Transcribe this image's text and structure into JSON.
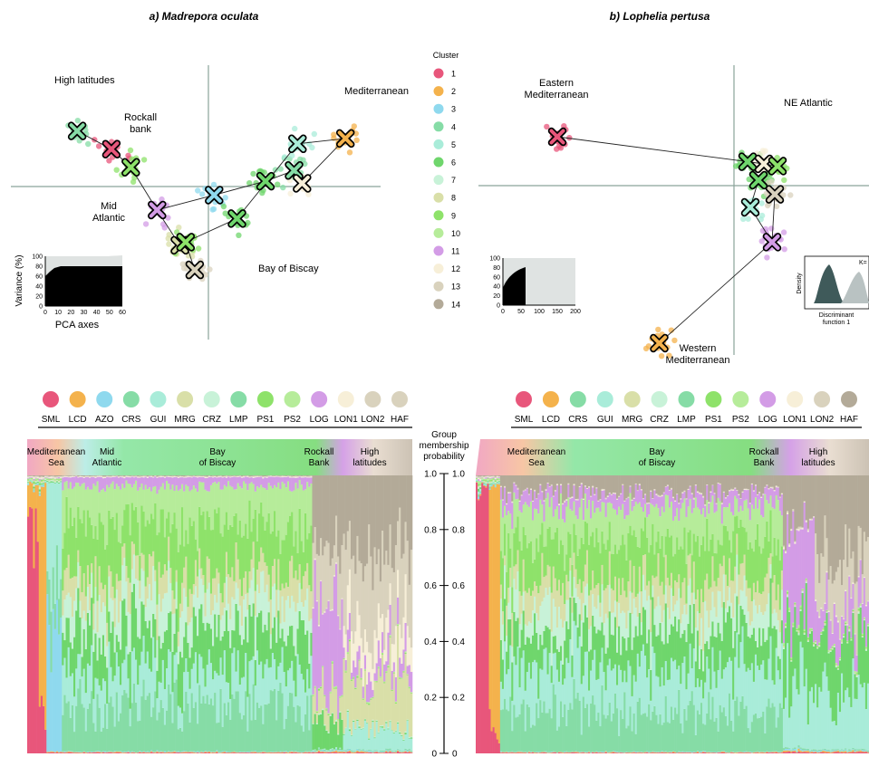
{
  "panel_titles": {
    "a": "a) Madrepora oculata",
    "b": "b) Lophelia pertusa"
  },
  "cluster_legend": {
    "title": "Cluster",
    "labels": [
      "1",
      "2",
      "3",
      "4",
      "5",
      "6",
      "7",
      "8",
      "9",
      "10",
      "11",
      "12",
      "13",
      "14"
    ],
    "colors": [
      "#e8567b",
      "#f4b24c",
      "#8fd9ee",
      "#86dca6",
      "#a9ecd9",
      "#6fd66c",
      "#c8f2d8",
      "#d9dfa8",
      "#8ee26a",
      "#b6ec9a",
      "#d39ce6",
      "#f7efd8",
      "#d9d2bd",
      "#b3aa98"
    ]
  },
  "region_labels_a": {
    "high_latitudes": "High latitudes",
    "rockall": "Rockall\nbank",
    "mediterranean": "Mediterranean",
    "mid_atlantic": "Mid\nAtlantic",
    "bay_of_biscay": "Bay of Biscay"
  },
  "region_labels_b": {
    "east_med": "Eastern\nMediterranean",
    "ne_atlantic": "NE Atlantic",
    "west_med": "Western\nMediterranean"
  },
  "variance_inset": {
    "ylabel": "Variance (%)",
    "xlabel_a": "PCA axes",
    "yticks": [
      "100",
      "80",
      "60",
      "40",
      "20",
      "0"
    ],
    "xticks_a": [
      "0",
      "10",
      "20",
      "30",
      "40",
      "50",
      "60"
    ],
    "xticks_b": [
      "0",
      "50",
      "100",
      "150",
      "200"
    ]
  },
  "density_inset": {
    "ylabel": "Density",
    "xlabel": "Discriminant\nfunction 1",
    "k_label": "K="
  },
  "populations": {
    "codes_a": [
      "SML",
      "LCD",
      "AZO",
      "CRS",
      "GUI",
      "MRG",
      "CRZ",
      "LMP",
      "PS1",
      "PS2",
      "LOG",
      "LON1",
      "LON2",
      "HAF"
    ],
    "colors_a": [
      "#e8567b",
      "#f4b24c",
      "#8fd9ee",
      "#86dca6",
      "#a9ecd9",
      "#d9dfa8",
      "#c8f2d8",
      "#86dca6",
      "#8ee26a",
      "#b6ec9a",
      "#d39ce6",
      "#f7efd8",
      "#d9d2bd",
      "#d9d2bd"
    ],
    "codes_b": [
      "SML",
      "LCD",
      "CRS",
      "GUI",
      "MRG",
      "CRZ",
      "LMP",
      "PS1",
      "PS2",
      "LOG",
      "LON1",
      "LON2",
      "HAF"
    ],
    "colors_b": [
      "#e8567b",
      "#f4b24c",
      "#86dca6",
      "#a9ecd9",
      "#d9dfa8",
      "#c8f2d8",
      "#86dca6",
      "#8ee26a",
      "#b6ec9a",
      "#d39ce6",
      "#f7efd8",
      "#d9d2bd",
      "#b3aa98"
    ]
  },
  "bar_regions_a": [
    "Mediterranean\nSea",
    "Mid\nAtlantic",
    "Bay\nof Biscay",
    "Rockall\nBank",
    "High\nlatitudes"
  ],
  "bar_regions_b": [
    "Mediterranean\nSea",
    "Bay\nof Biscay",
    "Rockall\nBank",
    "High\nlatitudes"
  ],
  "membership_axis": {
    "title": "Group\nmembership\nprobability",
    "ticks": [
      "1.0",
      "0.8",
      "0.6",
      "0.4",
      "0.2",
      "0"
    ]
  },
  "chart_data": [
    {
      "type": "scatter",
      "title": "a) Madrepora oculata",
      "xlabel": "",
      "ylabel": "",
      "grid": false,
      "series": [
        {
          "name": "cluster centroids",
          "points": [
            {
              "x": -1.15,
              "y": 0.52,
              "cluster": 4
            },
            {
              "x": -0.85,
              "y": 0.35,
              "cluster": 1
            },
            {
              "x": -0.68,
              "y": 0.18,
              "cluster": 9
            },
            {
              "x": -0.45,
              "y": -0.22,
              "cluster": 11
            },
            {
              "x": -0.25,
              "y": -0.55,
              "cluster": 8
            },
            {
              "x": -0.2,
              "y": -0.52,
              "cluster": 9
            },
            {
              "x": -0.12,
              "y": -0.78,
              "cluster": 13
            },
            {
              "x": 0.05,
              "y": -0.08,
              "cluster": 3
            },
            {
              "x": 0.25,
              "y": -0.3,
              "cluster": 6
            },
            {
              "x": 0.5,
              "y": 0.05,
              "cluster": 6
            },
            {
              "x": 0.75,
              "y": 0.15,
              "cluster": 4
            },
            {
              "x": 0.78,
              "y": 0.4,
              "cluster": 5
            },
            {
              "x": 0.82,
              "y": 0.03,
              "cluster": 12
            },
            {
              "x": 1.2,
              "y": 0.45,
              "cluster": 2
            }
          ]
        }
      ]
    },
    {
      "type": "scatter",
      "title": "b) Lophelia pertusa",
      "xlabel": "",
      "ylabel": "",
      "grid": false,
      "series": [
        {
          "name": "cluster centroids",
          "points": [
            {
              "x": -1.3,
              "y": 0.45,
              "cluster": 1
            },
            {
              "x": 0.1,
              "y": 0.22,
              "cluster": 6
            },
            {
              "x": 0.22,
              "y": 0.2,
              "cluster": 12
            },
            {
              "x": 0.32,
              "y": 0.18,
              "cluster": 9
            },
            {
              "x": 0.18,
              "y": 0.05,
              "cluster": 6
            },
            {
              "x": 0.3,
              "y": -0.08,
              "cluster": 13
            },
            {
              "x": 0.12,
              "y": -0.2,
              "cluster": 5
            },
            {
              "x": 0.28,
              "y": -0.52,
              "cluster": 11
            },
            {
              "x": -0.55,
              "y": -1.45,
              "cluster": 2
            }
          ]
        }
      ]
    },
    {
      "type": "bar",
      "title": "",
      "xlabel": "",
      "ylabel": "Group membership probability",
      "ylim": [
        0,
        1
      ],
      "stacked": true,
      "categories": [
        "SML",
        "LCD",
        "AZO",
        "CRS",
        "GUI",
        "MRG",
        "CRZ",
        "LMP",
        "PS1",
        "PS2",
        "LOG",
        "LON1",
        "LON2",
        "HAF"
      ]
    },
    {
      "type": "bar",
      "title": "",
      "xlabel": "",
      "ylabel": "Group membership probability",
      "ylim": [
        0,
        1
      ],
      "stacked": true,
      "categories": [
        "SML",
        "LCD",
        "CRS",
        "GUI",
        "MRG",
        "CRZ",
        "LMP",
        "PS1",
        "PS2",
        "LOG",
        "LON1",
        "LON2",
        "HAF"
      ]
    }
  ]
}
